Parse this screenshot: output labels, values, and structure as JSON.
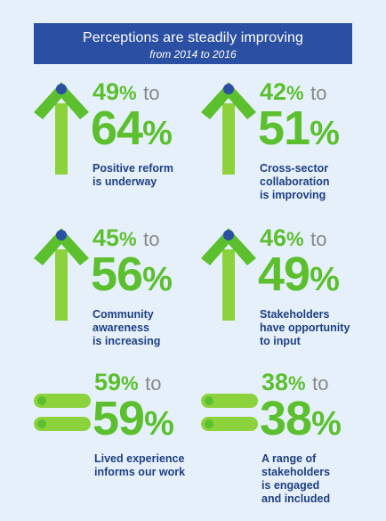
{
  "banner": {
    "title": "Perceptions are steadily improving",
    "subtitle": "from 2014 to 2016"
  },
  "colors": {
    "banner": "#2a4fa3",
    "green": "#5bbf2e",
    "light_green": "#8cd23c",
    "navy": "#1f3f86",
    "background": "#e6f0fa"
  },
  "stats": [
    {
      "icon": "up-arrow-icon",
      "from": "49",
      "to": "64",
      "pct": "%",
      "to_word": "to",
      "label": "Positive reform\nis underway",
      "trend": "up"
    },
    {
      "icon": "up-arrow-icon",
      "from": "42",
      "to": "51",
      "pct": "%",
      "to_word": "to",
      "label": "Cross-sector\ncollaboration\nis improving",
      "trend": "up"
    },
    {
      "icon": "up-arrow-icon",
      "from": "45",
      "to": "56",
      "pct": "%",
      "to_word": "to",
      "label": "Community\nawareness\nis increasing",
      "trend": "up"
    },
    {
      "icon": "up-arrow-icon",
      "from": "46",
      "to": "49",
      "pct": "%",
      "to_word": "to",
      "label": "Stakeholders\nhave opportunity\nto input",
      "trend": "up"
    },
    {
      "icon": "equals-icon",
      "from": "59",
      "to": "59",
      "pct": "%",
      "to_word": "to",
      "label": "Lived experience\ninforms our work",
      "trend": "equal"
    },
    {
      "icon": "equals-icon",
      "from": "38",
      "to": "38",
      "pct": "%",
      "to_word": "to",
      "label": "A range of\nstakeholders\nis engaged\nand included",
      "trend": "equal"
    }
  ]
}
